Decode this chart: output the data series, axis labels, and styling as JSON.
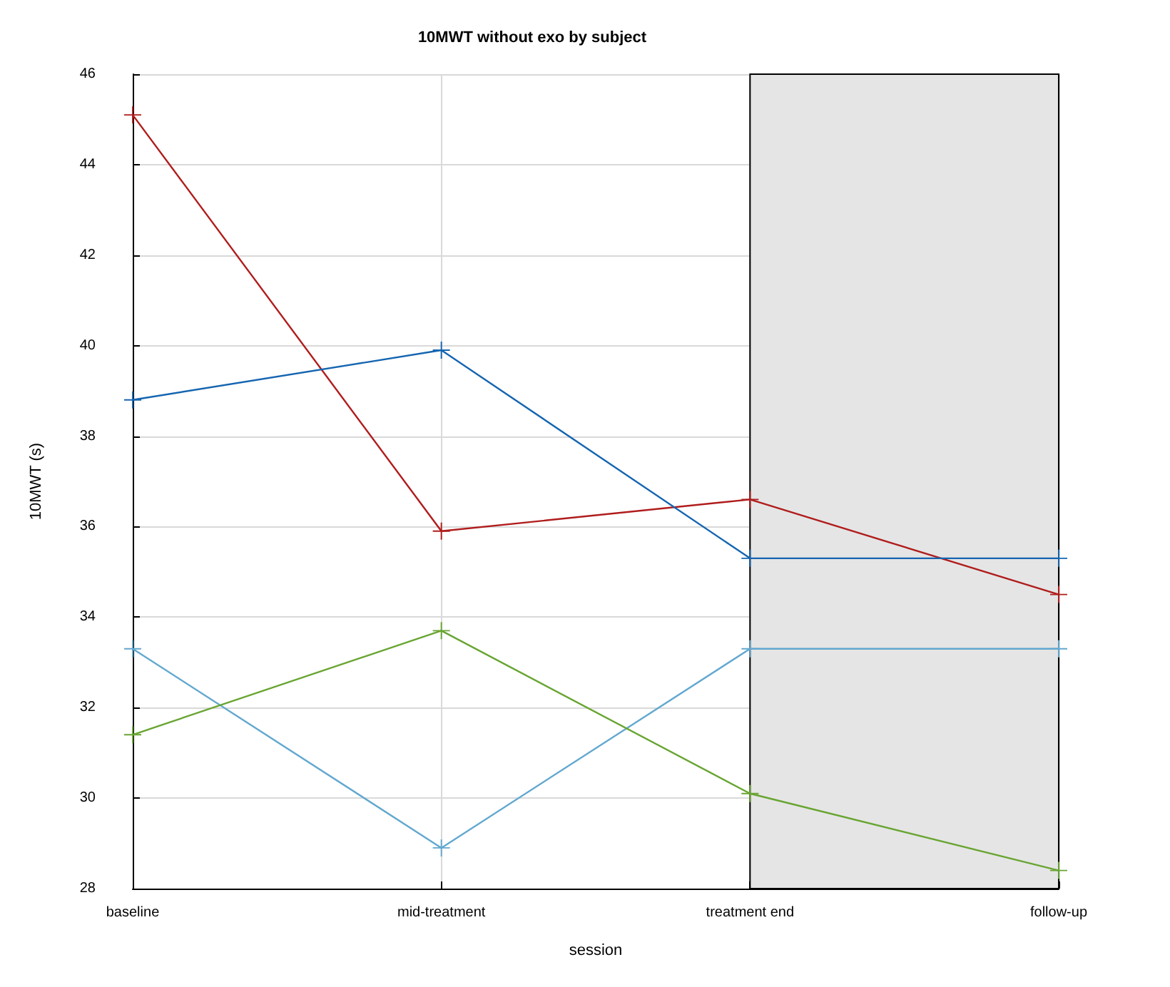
{
  "chart_data": {
    "type": "line",
    "title": "10MWT without exo by subject",
    "xlabel": "session",
    "ylabel": "10MWT (s)",
    "categories": [
      "baseline",
      "mid-treatment",
      "treatment end",
      "follow-up"
    ],
    "series": [
      {
        "color": "#b01c1c",
        "values": [
          45.1,
          35.9,
          36.6,
          34.5
        ]
      },
      {
        "color": "#1565b0",
        "values": [
          38.8,
          39.9,
          35.3,
          35.3
        ]
      },
      {
        "color": "#62a8cf",
        "values": [
          33.3,
          28.9,
          33.3,
          33.3
        ]
      },
      {
        "color": "#68a532",
        "values": [
          31.4,
          33.7,
          30.1,
          28.4
        ]
      }
    ],
    "ylim": [
      28,
      46
    ],
    "yticks": [
      28,
      30,
      32,
      34,
      36,
      38,
      40,
      42,
      44,
      46
    ],
    "bands": [
      {
        "axis": "x",
        "from": "treatment end",
        "to": "follow-up",
        "color": "#e5e5e5"
      }
    ],
    "grid": true,
    "marker": "cross",
    "line_style": "solid"
  }
}
